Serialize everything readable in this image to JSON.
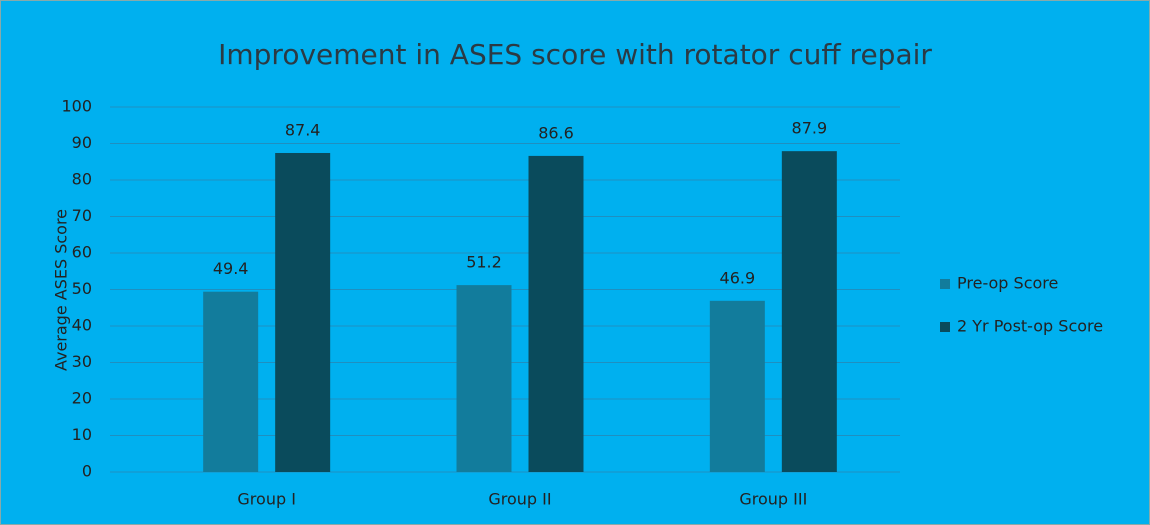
{
  "chart_data": {
    "type": "bar",
    "title": "Improvement in ASES score with rotator cuff repair",
    "y_label": "Average  ASES  Score",
    "categories": [
      "Group I",
      "Group II",
      "Group III"
    ],
    "series": [
      {
        "name": "Pre-op Score",
        "color": "#127c9c",
        "values": [
          49.4,
          51.2,
          46.9
        ]
      },
      {
        "name": "2 Yr Post-op Score",
        "color": "#0a4b5c",
        "values": [
          87.4,
          86.6,
          87.9
        ]
      }
    ],
    "ylim": [
      0,
      100
    ],
    "yticks": [
      0,
      10,
      20,
      30,
      40,
      50,
      60,
      70,
      80,
      90,
      100
    ],
    "grid": true,
    "legend": "right",
    "background": "#00b0ef"
  }
}
